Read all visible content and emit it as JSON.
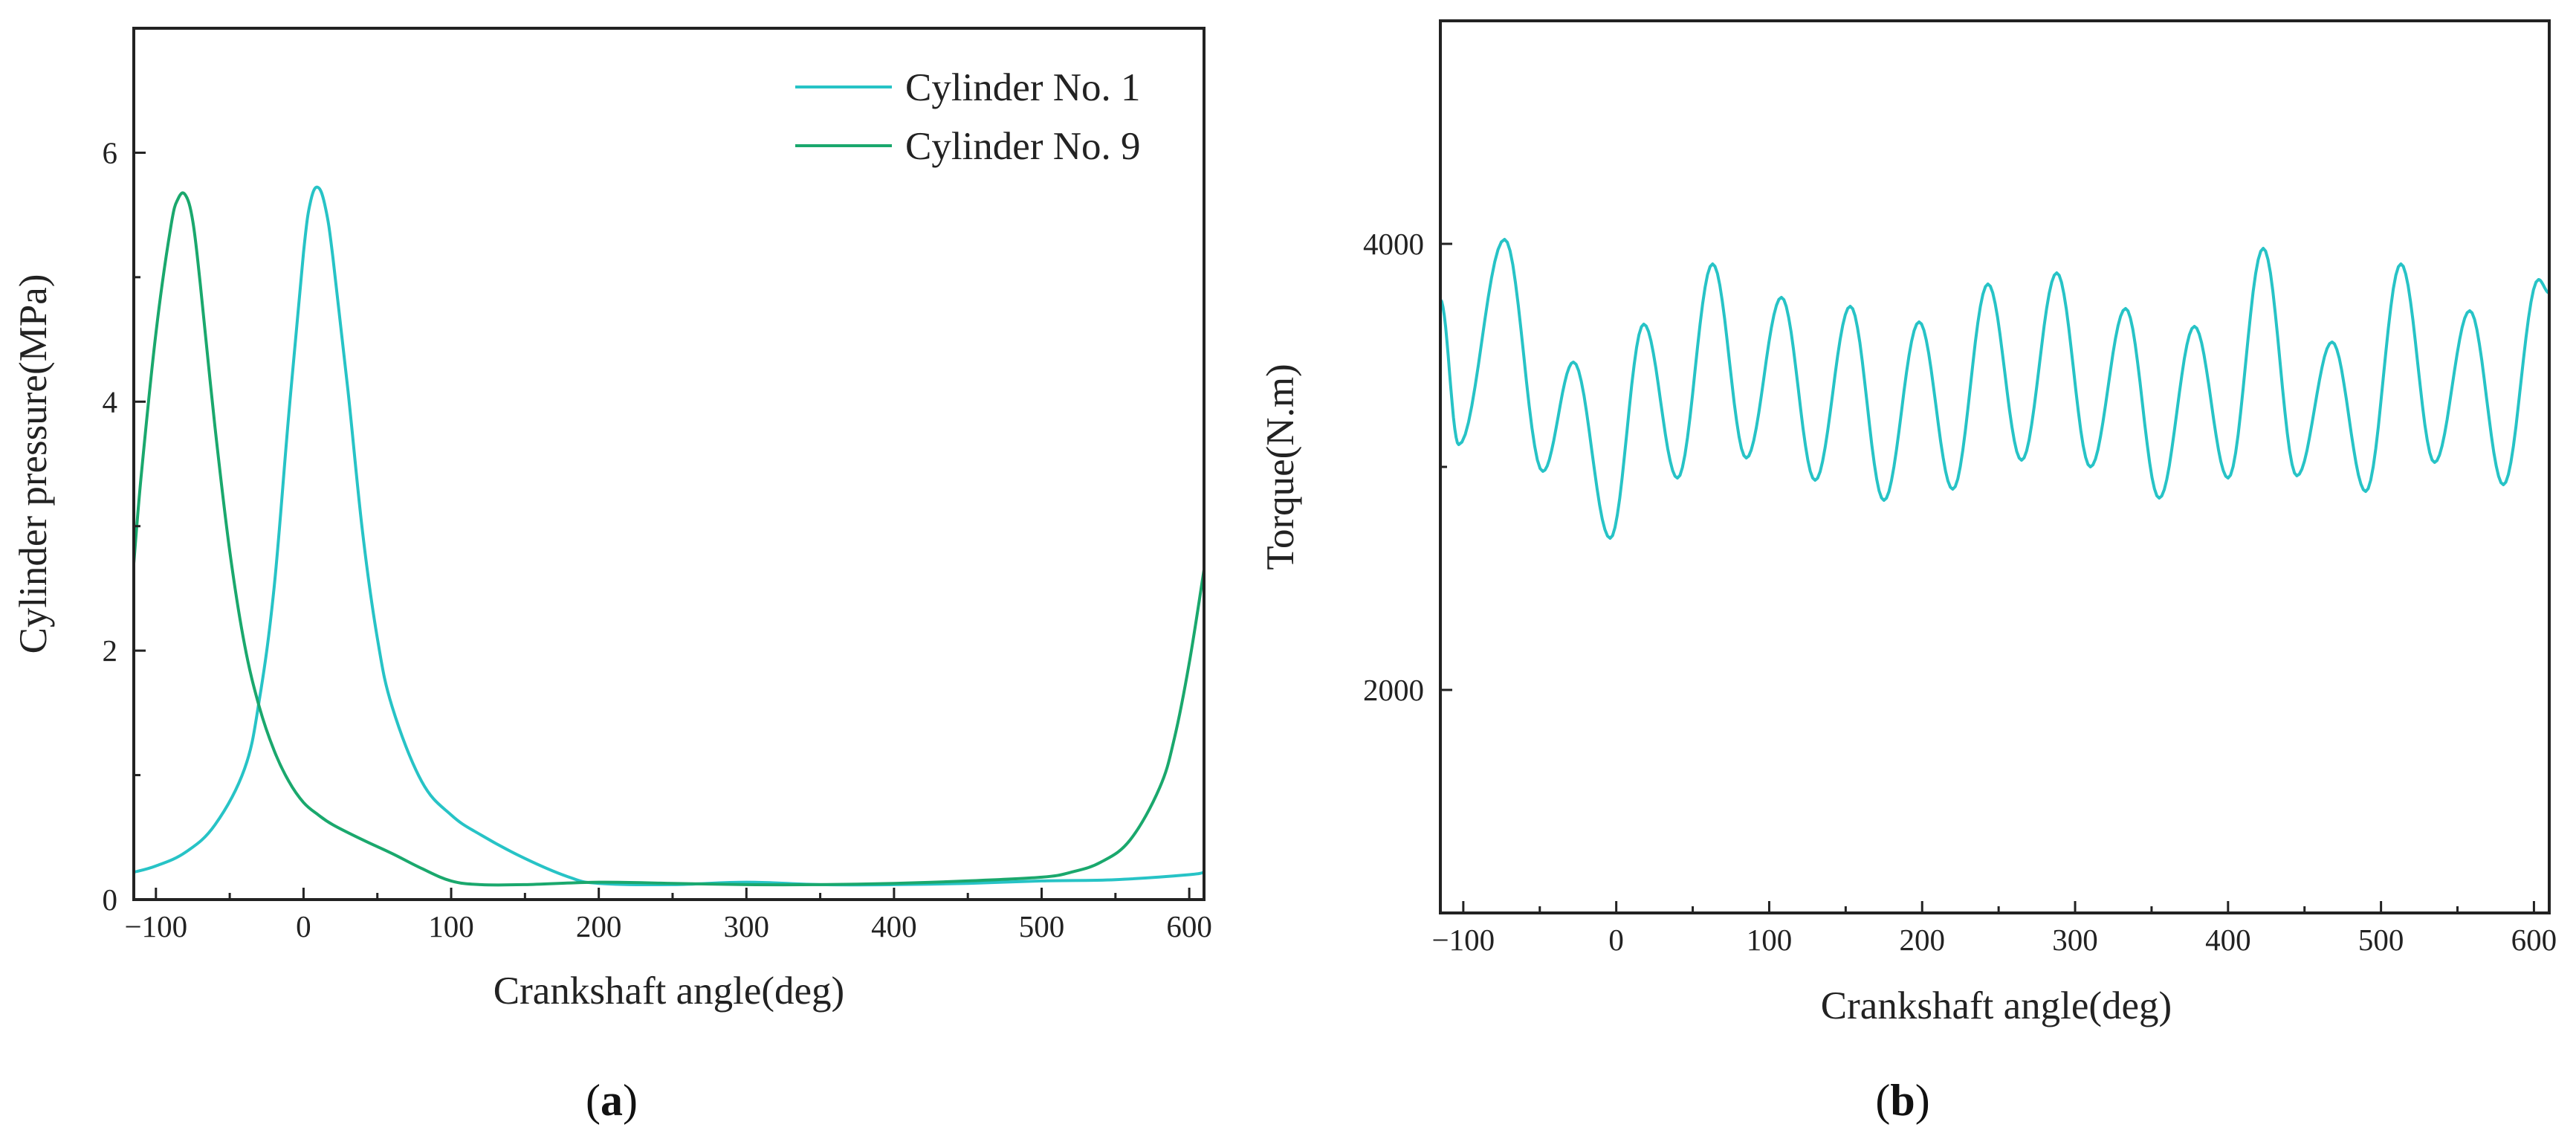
{
  "chart_data": [
    {
      "type": "line",
      "panel_label": "a",
      "title": "",
      "xlabel": "Crankshaft angle(deg)",
      "ylabel": "Cylinder pressure(MPa)",
      "xlim": [
        -115,
        610
      ],
      "ylim": [
        0,
        7
      ],
      "xticks": [
        -100,
        0,
        100,
        200,
        300,
        400,
        500,
        600
      ],
      "yticks": [
        0,
        2,
        4,
        6
      ],
      "grid": false,
      "legend": "top-right",
      "series": [
        {
          "name": "Cylinder No. 1",
          "color": "#27C3C6",
          "x": [
            -115,
            -100,
            -80,
            -60,
            -40,
            -30,
            -20,
            -10,
            0,
            5,
            10,
            15,
            20,
            30,
            40,
            50,
            60,
            80,
            100,
            120,
            150,
            180,
            200,
            250,
            300,
            350,
            400,
            450,
            500,
            550,
            600,
            610
          ],
          "y": [
            0.22,
            0.27,
            0.38,
            0.6,
            1.05,
            1.6,
            2.5,
            3.9,
            5.2,
            5.62,
            5.72,
            5.55,
            5.15,
            4.1,
            2.95,
            2.1,
            1.55,
            0.95,
            0.68,
            0.52,
            0.33,
            0.18,
            0.13,
            0.12,
            0.14,
            0.12,
            0.12,
            0.13,
            0.15,
            0.16,
            0.2,
            0.22
          ]
        },
        {
          "name": "Cylinder No. 9",
          "color": "#1AA86D",
          "x": [
            -115,
            -110,
            -100,
            -90,
            -85,
            -80,
            -75,
            -70,
            -60,
            -50,
            -40,
            -30,
            -20,
            -10,
            0,
            10,
            20,
            40,
            60,
            80,
            100,
            120,
            150,
            200,
            250,
            300,
            350,
            400,
            450,
            500,
            520,
            540,
            560,
            580,
            590,
            600,
            610
          ],
          "y": [
            2.7,
            3.4,
            4.55,
            5.4,
            5.63,
            5.66,
            5.45,
            4.95,
            3.8,
            2.8,
            2.05,
            1.55,
            1.2,
            0.95,
            0.78,
            0.68,
            0.6,
            0.48,
            0.37,
            0.25,
            0.15,
            0.12,
            0.12,
            0.14,
            0.13,
            0.12,
            0.12,
            0.13,
            0.15,
            0.18,
            0.22,
            0.3,
            0.48,
            0.9,
            1.3,
            1.9,
            2.65
          ]
        }
      ]
    },
    {
      "type": "line",
      "panel_label": "b",
      "title": "",
      "xlabel": "Crankshaft angle(deg)",
      "ylabel": "Torque(N.m)",
      "xlim": [
        -115,
        610
      ],
      "ylim": [
        1000,
        5000
      ],
      "xticks": [
        -100,
        0,
        100,
        200,
        300,
        400,
        500,
        600
      ],
      "yticks": [
        2000,
        4000
      ],
      "grid": false,
      "legend": "none",
      "series": [
        {
          "name": "Torque",
          "color": "#27C3C6",
          "extrema": [
            [
              -115,
              3750
            ],
            [
              -103,
              3100
            ],
            [
              -73,
              4020
            ],
            [
              -48,
              2980
            ],
            [
              -28,
              3470
            ],
            [
              -4,
              2680
            ],
            [
              18,
              3640
            ],
            [
              40,
              2950
            ],
            [
              63,
              3910
            ],
            [
              85,
              3040
            ],
            [
              108,
              3760
            ],
            [
              130,
              2940
            ],
            [
              153,
              3720
            ],
            [
              175,
              2850
            ],
            [
              198,
              3650
            ],
            [
              220,
              2900
            ],
            [
              243,
              3820
            ],
            [
              265,
              3030
            ],
            [
              288,
              3870
            ],
            [
              310,
              3000
            ],
            [
              333,
              3710
            ],
            [
              355,
              2860
            ],
            [
              378,
              3630
            ],
            [
              400,
              2950
            ],
            [
              423,
              3980
            ],
            [
              445,
              2960
            ],
            [
              468,
              3560
            ],
            [
              490,
              2890
            ],
            [
              513,
              3910
            ],
            [
              535,
              3020
            ],
            [
              558,
              3700
            ],
            [
              580,
              2920
            ],
            [
              603,
              3840
            ],
            [
              610,
              3780
            ]
          ]
        }
      ]
    }
  ]
}
